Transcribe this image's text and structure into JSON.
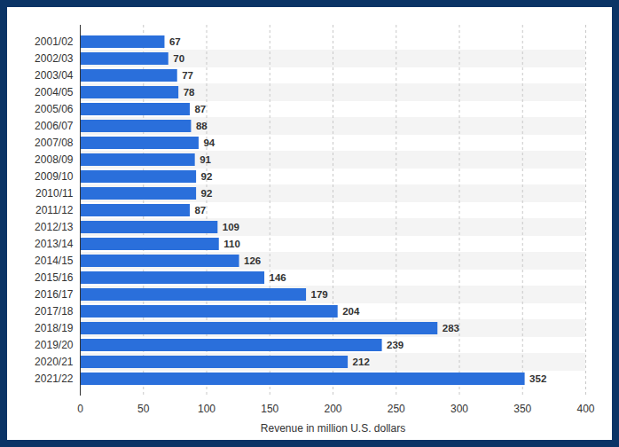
{
  "chart_data": {
    "type": "bar",
    "orientation": "horizontal",
    "x_label": "Revenue in million U.S. dollars",
    "categories": [
      "2001/02",
      "2002/03",
      "2003/04",
      "2004/05",
      "2005/06",
      "2006/07",
      "2007/08",
      "2008/09",
      "2009/10",
      "2010/11",
      "2011/12",
      "2012/13",
      "2013/14",
      "2014/15",
      "2015/16",
      "2016/17",
      "2017/18",
      "2018/19",
      "2019/20",
      "2020/21",
      "2021/22"
    ],
    "values": [
      67,
      70,
      77,
      78,
      87,
      88,
      94,
      91,
      92,
      92,
      87,
      109,
      110,
      126,
      146,
      179,
      204,
      283,
      239,
      212,
      352
    ],
    "color": "#2a6fdb",
    "xlim": [
      0,
      400
    ],
    "xticks": [
      0,
      50,
      100,
      150,
      200,
      250,
      300,
      350,
      400
    ],
    "grid": true,
    "data_labels": true
  }
}
